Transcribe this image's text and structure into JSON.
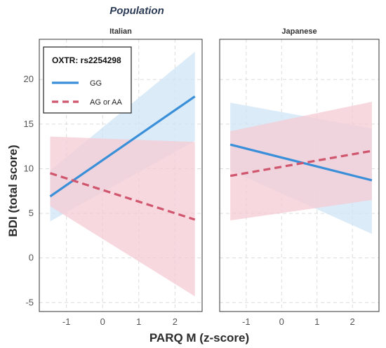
{
  "chart_data": {
    "type": "line",
    "title": "Population",
    "xlabel": "PARQ M (z-score)",
    "ylabel": "BDI (total score)",
    "xlim": [
      -1.75,
      2.75
    ],
    "ylim": [
      -6,
      24.5
    ],
    "x_ticks": [
      -1,
      0,
      1,
      2
    ],
    "y_ticks": [
      -5,
      0,
      5,
      10,
      15,
      20
    ],
    "grid": true,
    "legend": {
      "title": "OXTR: rs2254298",
      "position": "top-left",
      "entries": [
        {
          "label": "GG",
          "color": "#3a8fd9",
          "dash": "solid"
        },
        {
          "label": "AG or AA",
          "color": "#d0566e",
          "dash": "dashed"
        }
      ]
    },
    "panels": [
      {
        "name": "Italian",
        "series": [
          {
            "name": "GG",
            "color": "#3a8fd9",
            "fill": "#cfe4f6",
            "x": [
              -1.45,
              2.55
            ],
            "y": [
              6.9,
              18.1
            ],
            "lower": [
              4.1,
              13.1
            ],
            "upper": [
              9.8,
              23.1
            ]
          },
          {
            "name": "AG or AA",
            "color": "#d0566e",
            "fill": "#f6cbd4",
            "x": [
              -1.45,
              2.55
            ],
            "y": [
              9.5,
              4.3
            ],
            "lower": [
              5.8,
              -4.3
            ],
            "upper": [
              13.6,
              13.0
            ]
          }
        ]
      },
      {
        "name": "Japanese",
        "series": [
          {
            "name": "GG",
            "color": "#3a8fd9",
            "fill": "#cfe4f6",
            "x": [
              -1.45,
              2.55
            ],
            "y": [
              12.7,
              8.7
            ],
            "lower": [
              9.8,
              2.7
            ],
            "upper": [
              17.4,
              14.5
            ]
          },
          {
            "name": "AG or AA",
            "color": "#d0566e",
            "fill": "#f6cbd4",
            "x": [
              -1.45,
              2.55
            ],
            "y": [
              9.2,
              12.0
            ],
            "lower": [
              4.2,
              6.5
            ],
            "upper": [
              14.2,
              17.5
            ]
          }
        ]
      }
    ]
  }
}
